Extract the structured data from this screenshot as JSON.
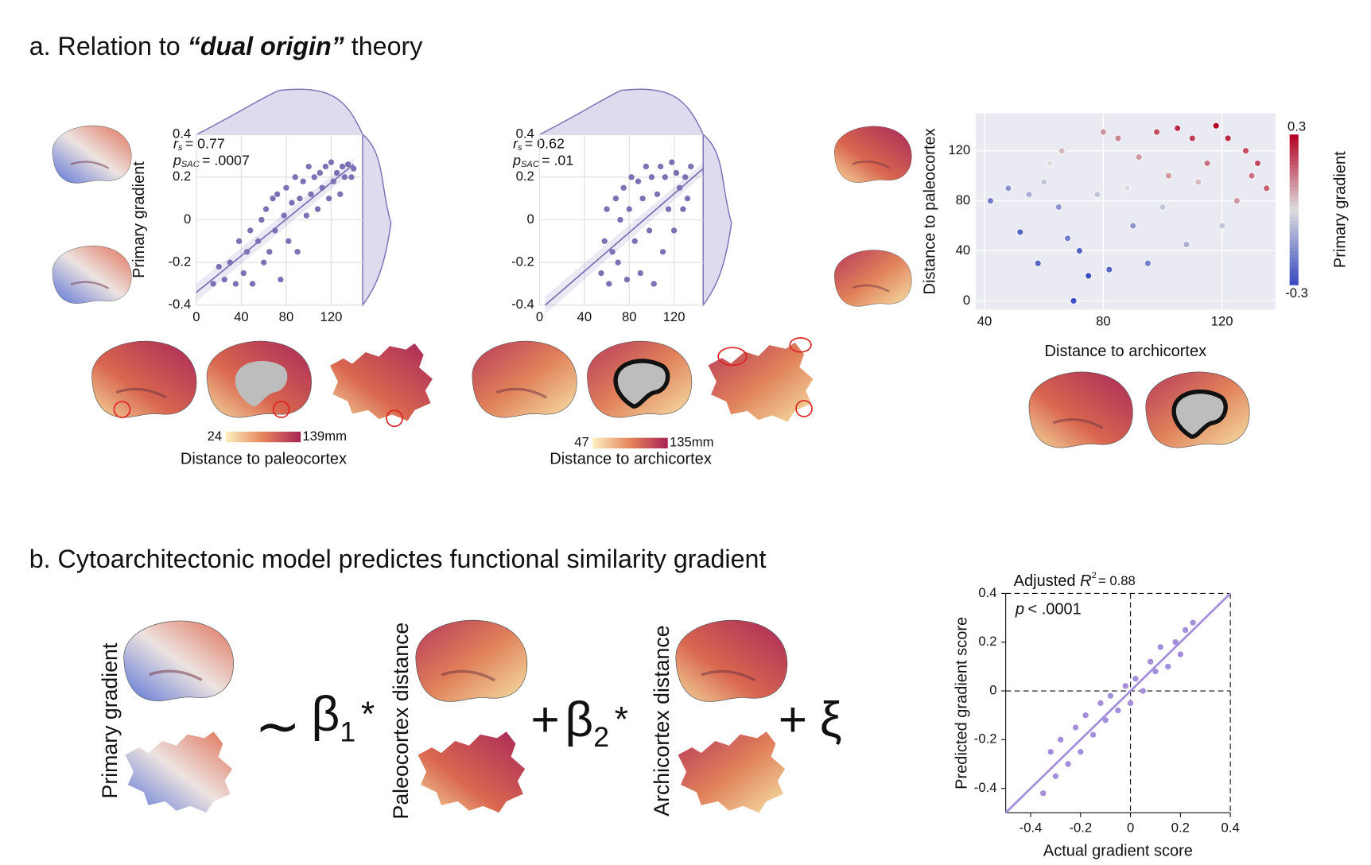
{
  "panel_a": {
    "title_prefix": "a. Relation to ",
    "title_emphasis": "“dual origin”",
    "title_suffix": " theory",
    "colorbars": [
      {
        "ticks": [
          24,
          {
            "value": 139,
            "label": "139mm"
          }
        ],
        "label": "Distance to paleocortex"
      },
      {
        "ticks": [
          47,
          {
            "value": 135,
            "label": "135mm"
          }
        ],
        "label": "Distance to archicortex"
      }
    ]
  },
  "panel_b": {
    "title": "b. Cytoarchitectonic model predictes functional similarity gradient",
    "formula": {
      "labels": [
        "Primary gradient",
        "Paleocortex distance",
        "Archicortex distance"
      ],
      "tilde": "∼",
      "beta1": "β",
      "sub1": "1",
      "star1": "*",
      "plus1": "+",
      "beta2": "β",
      "sub2": "2",
      "star2": "*",
      "plus2": "+",
      "xi": "ξ"
    }
  },
  "chart_data": [
    {
      "type": "scatter",
      "color": "#7b72b5",
      "ylabel": "Primary gradient",
      "grid": true,
      "annotations": {
        "r": "r",
        "r_sub": "s",
        "r_text": "= 0.77",
        "p": "p",
        "p_sub": "SAC",
        "p_text": "= .0007"
      },
      "xlim": [
        0,
        148
      ],
      "ylim": [
        -0.4,
        0.4
      ],
      "xticks": [
        0,
        40,
        80,
        120
      ],
      "yticks": [
        -0.4,
        -0.2,
        0,
        0.2,
        0.4
      ],
      "x": [
        15,
        20,
        25,
        30,
        35,
        38,
        42,
        45,
        48,
        50,
        55,
        58,
        60,
        62,
        65,
        68,
        70,
        72,
        75,
        78,
        80,
        82,
        85,
        88,
        90,
        92,
        95,
        98,
        100,
        102,
        105,
        108,
        110,
        112,
        115,
        118,
        120,
        122,
        125,
        128,
        130,
        132,
        135,
        138,
        140
      ],
      "values": [
        -0.3,
        -0.22,
        -0.28,
        -0.2,
        -0.3,
        -0.1,
        -0.25,
        -0.15,
        -0.05,
        -0.3,
        -0.1,
        0.0,
        -0.2,
        0.05,
        -0.15,
        0.1,
        -0.05,
        0.12,
        -0.28,
        0.02,
        0.15,
        -0.1,
        0.08,
        0.2,
        -0.15,
        0.1,
        0.18,
        0.02,
        0.25,
        0.12,
        0.2,
        0.05,
        0.22,
        0.15,
        0.25,
        0.1,
        0.27,
        0.18,
        0.22,
        0.12,
        0.25,
        0.2,
        0.26,
        0.2,
        0.24
      ],
      "fit": {
        "x": [
          0,
          140
        ],
        "y": [
          -0.34,
          0.26
        ]
      }
    },
    {
      "type": "scatter",
      "color": "#7b72b5",
      "grid": true,
      "annotations": {
        "r": "r",
        "r_sub": "s",
        "r_text": "= 0.62",
        "p": "p",
        "p_sub": "SAC",
        "p_text": "= .01"
      },
      "xlim": [
        0,
        146
      ],
      "ylim": [
        -0.4,
        0.4
      ],
      "xticks": [
        0,
        40,
        80,
        120
      ],
      "yticks": [
        -0.4,
        -0.2,
        0,
        0.2,
        0.4
      ],
      "x": [
        55,
        58,
        60,
        62,
        65,
        68,
        70,
        72,
        75,
        78,
        80,
        82,
        85,
        88,
        90,
        92,
        95,
        98,
        100,
        102,
        105,
        108,
        110,
        112,
        115,
        118,
        120,
        122,
        125,
        128,
        130,
        132,
        135
      ],
      "values": [
        -0.25,
        -0.1,
        0.05,
        -0.3,
        -0.15,
        0.1,
        -0.2,
        0.0,
        0.15,
        -0.28,
        0.05,
        0.2,
        -0.1,
        0.18,
        -0.25,
        0.1,
        0.25,
        -0.05,
        0.2,
        -0.3,
        0.12,
        0.25,
        -0.15,
        0.2,
        0.05,
        0.27,
        -0.05,
        0.22,
        0.15,
        0.05,
        0.2,
        0.1,
        0.25
      ],
      "fit": {
        "x": [
          5,
          146
        ],
        "y": [
          -0.4,
          0.24
        ]
      }
    },
    {
      "type": "scatter",
      "xlabel": "Distance to archicortex",
      "ylabel": "Distance to paleocortex",
      "grid": true,
      "background": "#eaeaf2",
      "colormap": [
        "#3b4cc0",
        "#dddddd",
        "#b40426"
      ],
      "clim": [
        -0.3,
        0.3
      ],
      "cticks": [
        -0.3,
        0.3
      ],
      "clabel": "Primary gradient",
      "xlim": [
        37,
        138
      ],
      "ylim": [
        -7,
        150
      ],
      "xticks": [
        40,
        80,
        120
      ],
      "yticks": [
        0,
        40,
        80,
        120
      ],
      "x": [
        42,
        48,
        52,
        55,
        58,
        60,
        62,
        65,
        66,
        68,
        70,
        72,
        75,
        78,
        80,
        82,
        85,
        88,
        90,
        92,
        95,
        98,
        100,
        102,
        105,
        108,
        110,
        112,
        115,
        118,
        120,
        122,
        125,
        128,
        130,
        132,
        135
      ],
      "values": [
        80,
        90,
        55,
        85,
        30,
        95,
        110,
        75,
        120,
        50,
        0,
        40,
        20,
        85,
        135,
        25,
        130,
        90,
        60,
        115,
        30,
        135,
        75,
        100,
        138,
        45,
        130,
        95,
        110,
        140,
        60,
        130,
        80,
        120,
        100,
        110,
        90
      ],
      "color_values": [
        -0.2,
        -0.15,
        -0.25,
        -0.1,
        -0.25,
        -0.05,
        0.0,
        -0.15,
        0.05,
        -0.2,
        -0.3,
        -0.25,
        -0.3,
        -0.05,
        0.1,
        -0.25,
        0.12,
        0.0,
        -0.15,
        0.1,
        -0.2,
        0.2,
        -0.05,
        0.1,
        0.25,
        -0.1,
        0.22,
        0.05,
        0.15,
        0.3,
        -0.05,
        0.25,
        0.1,
        0.2,
        0.15,
        0.2,
        0.18
      ]
    },
    {
      "type": "scatter",
      "color": "#a58fdc",
      "xlabel": "Actual gradient score",
      "ylabel": "Predicted gradient score",
      "box": true,
      "diagonal": true,
      "zero_lines": true,
      "title": {
        "prefix": "Adjusted ",
        "r": "R",
        "sup": "2",
        "suffix": "= 0.88"
      },
      "annotation": {
        "p": "p",
        "text": "< .0001"
      },
      "xlim": [
        -0.5,
        0.4
      ],
      "ylim": [
        -0.5,
        0.4
      ],
      "xticks": [
        -0.4,
        -0.2,
        0,
        0.2,
        0.4
      ],
      "yticks": [
        -0.4,
        -0.2,
        0,
        0.2,
        0.4
      ],
      "x": [
        -0.35,
        -0.32,
        -0.3,
        -0.28,
        -0.25,
        -0.22,
        -0.2,
        -0.18,
        -0.15,
        -0.12,
        -0.1,
        -0.08,
        -0.05,
        -0.02,
        0.0,
        0.02,
        0.05,
        0.08,
        0.1,
        0.12,
        0.15,
        0.18,
        0.2,
        0.22,
        0.25
      ],
      "values": [
        -0.42,
        -0.25,
        -0.35,
        -0.2,
        -0.3,
        -0.15,
        -0.25,
        -0.1,
        -0.18,
        -0.05,
        -0.12,
        -0.02,
        -0.08,
        0.02,
        -0.05,
        0.05,
        0.0,
        0.12,
        0.08,
        0.18,
        0.1,
        0.2,
        0.15,
        0.25,
        0.28
      ]
    }
  ]
}
